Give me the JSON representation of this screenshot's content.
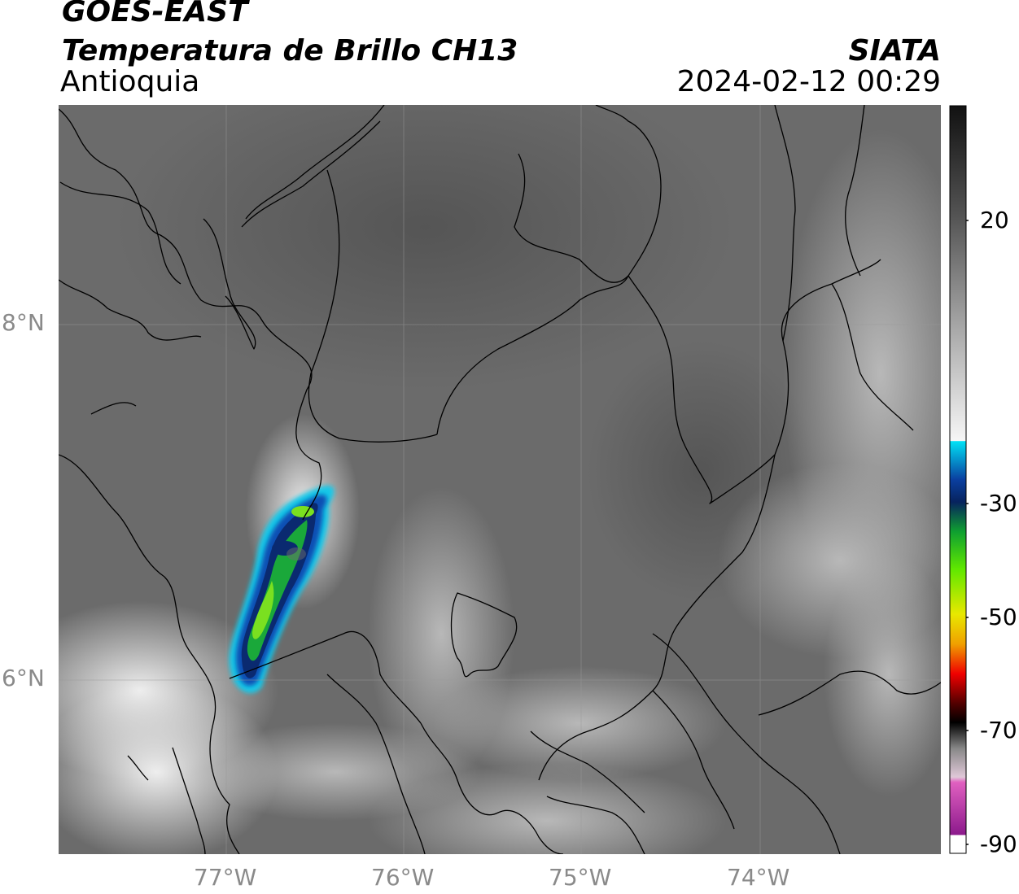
{
  "header": {
    "satellite": "GOES-EAST",
    "product": "Temperatura de Brillo CH13",
    "region": "Antioquia",
    "agency": "SIATA",
    "timestamp": "2024-02-12 00:29"
  },
  "map": {
    "lat_labels": [
      "8°N",
      "6°N"
    ],
    "lon_labels": [
      "77°W",
      "76°W",
      "75°W",
      "74°W"
    ],
    "gridlines": true,
    "colors": {
      "background_gray": "#6b6b6b",
      "boundary": "#000000",
      "grid": "#9a9a9a"
    }
  },
  "colorbar": {
    "tick_labels": [
      "20",
      "-30",
      "-50",
      "-70",
      "-90"
    ],
    "stops": [
      "#111111",
      "#555555",
      "#a9a9a9",
      "#f6f6f6",
      "#00e1f5",
      "#0a3fa0",
      "#07235e",
      "#0fa030",
      "#60e800",
      "#e8e800",
      "#f0a000",
      "#f00000",
      "#500000",
      "#000000",
      "#888888",
      "#e0c8d8",
      "#e060c0",
      "#8c1a8c",
      "#ffffff"
    ]
  }
}
